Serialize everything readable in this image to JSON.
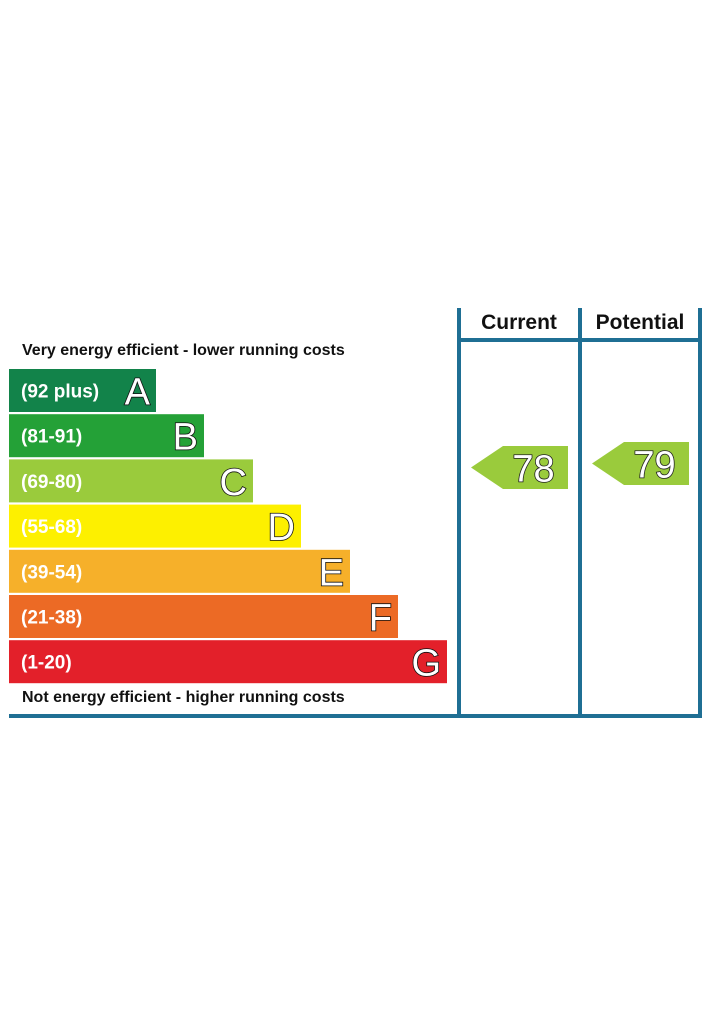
{
  "chart_data": {
    "type": "bar",
    "caption_top": "Very energy efficient - lower running costs",
    "caption_bottom": "Not energy efficient - higher running costs",
    "columns": {
      "current_label": "Current",
      "potential_label": "Potential"
    },
    "categories": [
      "A",
      "B",
      "C",
      "D",
      "E",
      "F",
      "G"
    ],
    "bands": [
      {
        "letter": "A",
        "range": "(92 plus)",
        "color": "#12834a"
      },
      {
        "letter": "B",
        "range": "(81-91)",
        "color": "#24a137"
      },
      {
        "letter": "C",
        "range": "(69-80)",
        "color": "#9acb3c"
      },
      {
        "letter": "D",
        "range": "(55-68)",
        "color": "#fdf000"
      },
      {
        "letter": "E",
        "range": "(39-54)",
        "color": "#f6b02a"
      },
      {
        "letter": "F",
        "range": "(21-38)",
        "color": "#ec6a25"
      },
      {
        "letter": "G",
        "range": "(1-20)",
        "color": "#e3202a"
      }
    ],
    "current": {
      "value": "78",
      "band": "C",
      "color": "#9acb3c"
    },
    "potential": {
      "value": "79",
      "band": "C",
      "color": "#9acb3c"
    },
    "frame_color": "#1f6f94"
  }
}
